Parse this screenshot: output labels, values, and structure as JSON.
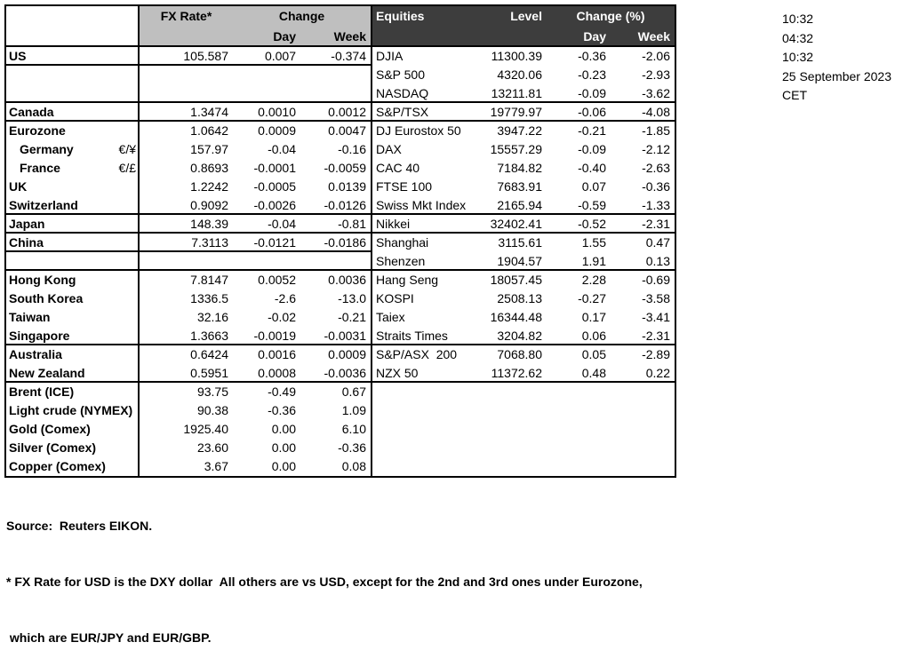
{
  "colors": {
    "header_left_bg": "#bfbfbf",
    "header_right_bg": "#3d3d3d",
    "border": "#000000"
  },
  "table": {
    "headers": {
      "fx_rate": "FX Rate*",
      "change": "Change",
      "day": "Day",
      "week": "Week",
      "equities": "Equities",
      "level": "Level",
      "change_pct": "Change (%)"
    },
    "rows": [
      {
        "fx_name": "US",
        "fx_symbol": "",
        "fx_rate": "105.587",
        "fx_day": "0.007",
        "fx_week": "-0.374",
        "eq_name": "DJIA",
        "eq_level": "11300.39",
        "eq_day": "-0.36",
        "eq_week": "-2.06",
        "sep": "left"
      },
      {
        "fx_name": "",
        "fx_symbol": "",
        "fx_rate": "",
        "fx_day": "",
        "fx_week": "",
        "eq_name": "S&P 500",
        "eq_level": "4320.06",
        "eq_day": "-0.23",
        "eq_week": "-2.93"
      },
      {
        "fx_name": "",
        "fx_symbol": "",
        "fx_rate": "",
        "fx_day": "",
        "fx_week": "",
        "eq_name": "NASDAQ",
        "eq_level": "13211.81",
        "eq_day": "-0.09",
        "eq_week": "-3.62",
        "sep": "full"
      },
      {
        "fx_name": "Canada",
        "fx_symbol": "",
        "fx_rate": "1.3474",
        "fx_day": "0.0010",
        "fx_week": "0.0012",
        "eq_name": "S&P/TSX",
        "eq_level": "19779.97",
        "eq_day": "-0.06",
        "eq_week": "-4.08",
        "sep": "full"
      },
      {
        "fx_name": "Eurozone",
        "fx_symbol": "",
        "fx_rate": "1.0642",
        "fx_day": "0.0009",
        "fx_week": "0.0047",
        "eq_name": "DJ Eurostox 50",
        "eq_level": "3947.22",
        "eq_day": "-0.21",
        "eq_week": "-1.85"
      },
      {
        "fx_name": "Germany",
        "fx_symbol": "€/¥",
        "fx_rate": "157.97",
        "fx_day": "-0.04",
        "fx_week": "-0.16",
        "eq_name": "DAX",
        "eq_level": "15557.29",
        "eq_day": "-0.09",
        "eq_week": "-2.12",
        "indent": true
      },
      {
        "fx_name": "France",
        "fx_symbol": "€/£",
        "fx_rate": "0.8693",
        "fx_day": "-0.0001",
        "fx_week": "-0.0059",
        "eq_name": "CAC 40",
        "eq_level": "7184.82",
        "eq_day": "-0.40",
        "eq_week": "-2.63",
        "indent": true
      },
      {
        "fx_name": "UK",
        "fx_symbol": "",
        "fx_rate": "1.2242",
        "fx_day": "-0.0005",
        "fx_week": "0.0139",
        "eq_name": "FTSE 100",
        "eq_level": "7683.91",
        "eq_day": "0.07",
        "eq_week": "-0.36"
      },
      {
        "fx_name": "Switzerland",
        "fx_symbol": "",
        "fx_rate": "0.9092",
        "fx_day": "-0.0026",
        "fx_week": "-0.0126",
        "eq_name": "Swiss Mkt Index",
        "eq_level": "2165.94",
        "eq_day": "-0.59",
        "eq_week": "-1.33",
        "sep": "full"
      },
      {
        "fx_name": "Japan",
        "fx_symbol": "",
        "fx_rate": "148.39",
        "fx_day": "-0.04",
        "fx_week": "-0.81",
        "eq_name": "Nikkei",
        "eq_level": "32402.41",
        "eq_day": "-0.52",
        "eq_week": "-2.31",
        "sep": "full"
      },
      {
        "fx_name": "China",
        "fx_symbol": "",
        "fx_rate": "7.3113",
        "fx_day": "-0.0121",
        "fx_week": "-0.0186",
        "eq_name": "Shanghai",
        "eq_level": "3115.61",
        "eq_day": "1.55",
        "eq_week": "0.47",
        "sep": "left"
      },
      {
        "fx_name": "",
        "fx_symbol": "",
        "fx_rate": "",
        "fx_day": "",
        "fx_week": "",
        "eq_name": "Shenzen",
        "eq_level": "1904.57",
        "eq_day": "1.91",
        "eq_week": "0.13",
        "sep": "full"
      },
      {
        "fx_name": "Hong Kong",
        "fx_symbol": "",
        "fx_rate": "7.8147",
        "fx_day": "0.0052",
        "fx_week": "0.0036",
        "eq_name": "Hang Seng",
        "eq_level": "18057.45",
        "eq_day": "2.28",
        "eq_week": "-0.69"
      },
      {
        "fx_name": "South Korea",
        "fx_symbol": "",
        "fx_rate": "1336.5",
        "fx_day": "-2.6",
        "fx_week": "-13.0",
        "eq_name": "KOSPI",
        "eq_level": "2508.13",
        "eq_day": "-0.27",
        "eq_week": "-3.58"
      },
      {
        "fx_name": "Taiwan",
        "fx_symbol": "",
        "fx_rate": "32.16",
        "fx_day": "-0.02",
        "fx_week": "-0.21",
        "eq_name": "Taiex",
        "eq_level": "16344.48",
        "eq_day": "0.17",
        "eq_week": "-3.41"
      },
      {
        "fx_name": "Singapore",
        "fx_symbol": "",
        "fx_rate": "1.3663",
        "fx_day": "-0.0019",
        "fx_week": "-0.0031",
        "eq_name": "Straits Times",
        "eq_level": "3204.82",
        "eq_day": "0.06",
        "eq_week": "-2.31",
        "sep": "full"
      },
      {
        "fx_name": "Australia",
        "fx_symbol": "",
        "fx_rate": "0.6424",
        "fx_day": "0.0016",
        "fx_week": "0.0009",
        "eq_name": "S&P/ASX  200",
        "eq_level": "7068.80",
        "eq_day": "0.05",
        "eq_week": "-2.89"
      },
      {
        "fx_name": "New Zealand",
        "fx_symbol": "",
        "fx_rate": "0.5951",
        "fx_day": "0.0008",
        "fx_week": "-0.0036",
        "eq_name": "NZX 50",
        "eq_level": "11372.62",
        "eq_day": "0.48",
        "eq_week": "0.22",
        "sep": "full"
      },
      {
        "fx_name": "Brent (ICE)",
        "fx_symbol": "",
        "fx_rate": "93.75",
        "fx_day": "-0.49",
        "fx_week": "0.67",
        "eq_name": "",
        "eq_level": "",
        "eq_day": "",
        "eq_week": ""
      },
      {
        "fx_name": "Light crude (NYMEX)",
        "fx_symbol": "",
        "fx_rate": "90.38",
        "fx_day": "-0.36",
        "fx_week": "1.09",
        "eq_name": "",
        "eq_level": "",
        "eq_day": "",
        "eq_week": ""
      },
      {
        "fx_name": "Gold (Comex)",
        "fx_symbol": "",
        "fx_rate": "1925.40",
        "fx_day": "0.00",
        "fx_week": "6.10",
        "eq_name": "",
        "eq_level": "",
        "eq_day": "",
        "eq_week": ""
      },
      {
        "fx_name": "Silver (Comex)",
        "fx_symbol": "",
        "fx_rate": "23.60",
        "fx_day": "0.00",
        "fx_week": "-0.36",
        "eq_name": "",
        "eq_level": "",
        "eq_day": "",
        "eq_week": ""
      },
      {
        "fx_name": "Copper (Comex)",
        "fx_symbol": "",
        "fx_rate": "3.67",
        "fx_day": "0.00",
        "fx_week": "0.08",
        "eq_name": "",
        "eq_level": "",
        "eq_day": "",
        "eq_week": ""
      }
    ]
  },
  "times": [
    "10:32",
    "04:32",
    "10:32",
    "25 September 2023",
    "CET"
  ],
  "footer": {
    "source": "Source:  Reuters EIKON.",
    "note1": "* FX Rate for USD is the DXY dollar  All others are vs USD, except for the 2nd and 3rd ones under Eurozone,",
    "note2": " which are EUR/JPY and EUR/GBP."
  }
}
